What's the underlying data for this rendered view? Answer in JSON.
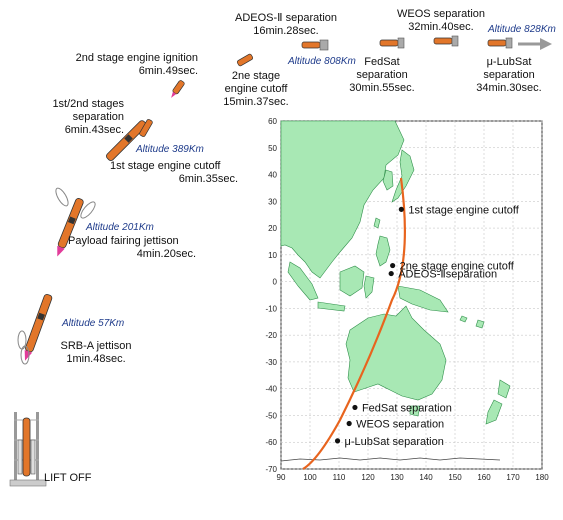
{
  "events": {
    "lift_off": "LIFT OFF",
    "srb_jettison": [
      "SRB-A jettison",
      "1min.48sec."
    ],
    "fairing_jettison": [
      "Payload fairing jettison",
      "4min.20sec."
    ],
    "stage1_cutoff": [
      "1st stage engine cutoff",
      "6min.35sec."
    ],
    "stage_sep": [
      "1st/2nd stages",
      "separation",
      "6min.43sec."
    ],
    "stage2_ignition": [
      "2nd stage engine ignition",
      "6min.49sec."
    ],
    "stage2_cutoff": [
      "2ne stage",
      "engine cutoff",
      "15min.37sec."
    ],
    "adeos_sep": [
      "ADEOS-Ⅱ separation",
      "16min.28sec."
    ],
    "fedsat_sep": [
      "FedSat",
      "separation",
      "30min.55sec."
    ],
    "weos_sep": [
      "WEOS separation",
      "32min.40sec."
    ],
    "lubsat_sep": [
      "μ-LubSat",
      "separation",
      "34min.30sec."
    ]
  },
  "altitudes": {
    "a57": "Altitude 57Km",
    "a201": "Altitude 201Km",
    "a389": "Altitude 389Km",
    "a808": "Altitude 808Km",
    "a828": "Altitude 828Km"
  },
  "map": {
    "colors": {
      "land": "#a8e8b4",
      "coast": "#2f8f4a",
      "track": "#e8641e",
      "grid": "#bbbbbb"
    },
    "x_ticks": [
      "90",
      "100",
      "110",
      "120",
      "130",
      "140",
      "150",
      "160",
      "170",
      "180"
    ],
    "y_ticks": [
      "60",
      "50",
      "40",
      "30",
      "20",
      "10",
      "0",
      "-10",
      "-20",
      "-30",
      "-40",
      "-50",
      "-60",
      "-70"
    ],
    "points": [
      {
        "label": "1st stage engine cutoff",
        "lon": 131.5,
        "lat": 27
      },
      {
        "label": "2ne stage engine cutoff",
        "lon": 128.5,
        "lat": 6
      },
      {
        "label": "ADEOS-Ⅱseparation",
        "lon": 128,
        "lat": 3
      },
      {
        "label": "FedSat separation",
        "lon": 115.5,
        "lat": -47
      },
      {
        "label": "WEOS separation",
        "lon": 113.5,
        "lat": -53
      },
      {
        "label": "μ-LubSat separation",
        "lon": 109.5,
        "lat": -59.5
      }
    ]
  }
}
